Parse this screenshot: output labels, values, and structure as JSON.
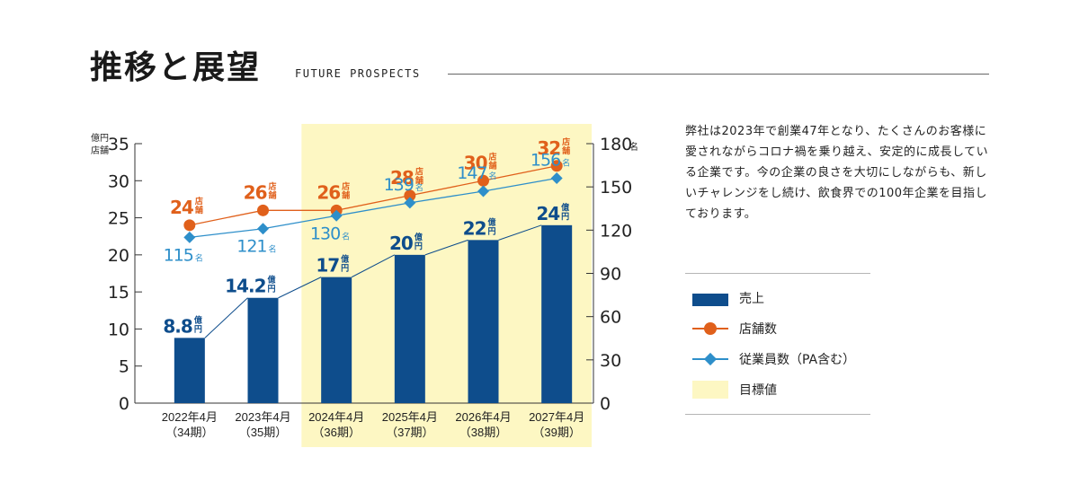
{
  "header": {
    "title": "推移と展望",
    "subtitle": "FUTURE PROSPECTS"
  },
  "description": "弊社は2023年で創業47年となり、たくさんのお客様に愛されながらコロナ禍を乗り越え、安定的に成長している企業です。今の企業の良さを大切にしながらも、新しいチャレンジをし続け、飲食界での100年企業を目指しております。",
  "legend": {
    "sales": "売上",
    "stores": "店舗数",
    "employees": "従業員数（PA含む）",
    "target": "目標値"
  },
  "chart_data": {
    "type": "bar",
    "categories": [
      "2022年4月",
      "2023年4月",
      "2024年4月",
      "2025年4月",
      "2026年4月",
      "2027年4月"
    ],
    "periods": [
      "（34期）",
      "（35期）",
      "（36期）",
      "（37期）",
      "（38期）",
      "（39期）"
    ],
    "target_range": [
      "2024年4月",
      "2027年4月"
    ],
    "left_axis": {
      "unit_line1": "億円",
      "unit_line2": "店舗",
      "range": [
        0,
        35
      ],
      "ticks": [
        0,
        5,
        10,
        15,
        20,
        25,
        30,
        35
      ]
    },
    "right_axis": {
      "unit": "名",
      "range": [
        0,
        180
      ],
      "ticks": [
        0,
        30,
        60,
        90,
        120,
        150,
        180
      ]
    },
    "series": [
      {
        "name": "売上",
        "kind": "bar",
        "axis": "left",
        "values": [
          8.8,
          14.2,
          17,
          20,
          22,
          24
        ],
        "labels": [
          "8.8",
          "14.2",
          "17",
          "20",
          "22",
          "24"
        ],
        "unit": "億円",
        "color": "#0e4d8c"
      },
      {
        "name": "店舗数",
        "kind": "line",
        "marker": "circle",
        "axis": "left",
        "values": [
          24,
          26,
          26,
          28,
          30,
          32
        ],
        "unit": "店舗",
        "color": "#e0601b"
      },
      {
        "name": "従業員数（PA含む）",
        "kind": "line",
        "marker": "diamond",
        "axis": "right",
        "values": [
          115,
          121,
          130,
          139,
          147,
          156
        ],
        "unit": "名",
        "color": "#2e8fca"
      }
    ],
    "colors": {
      "target_bg": "#fdf7c3",
      "axis": "#333333",
      "sales_label": "#0e4d8c",
      "employees_label": "#2e8fca",
      "stores_label": "#e0601b"
    }
  }
}
